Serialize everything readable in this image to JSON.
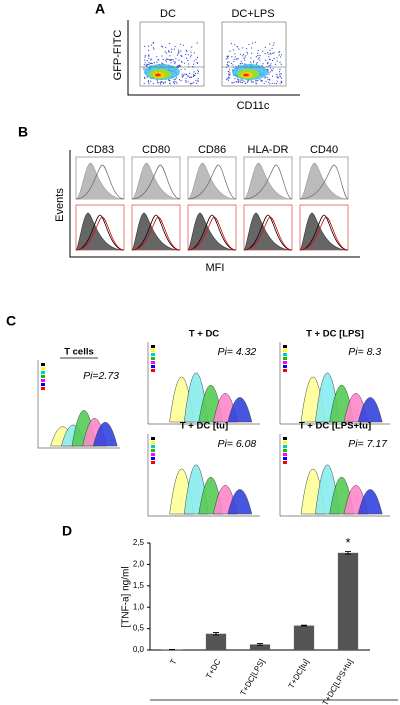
{
  "panel_a": {
    "label": "A",
    "titles": [
      "DC",
      "DC+LPS"
    ],
    "y_label": "GFP-FITC",
    "x_label": "CD11c"
  },
  "panel_b": {
    "label": "B",
    "markers": [
      "CD83",
      "CD80",
      "CD86",
      "HLA-DR",
      "CD40"
    ],
    "y_label": "Events",
    "x_label": "MFI"
  },
  "panel_c": {
    "label": "C",
    "plots": [
      {
        "title": "T cells",
        "pi": "Pi=2.73"
      },
      {
        "title": "T + DC",
        "pi": "Pi= 4.32"
      },
      {
        "title": "T + DC [LPS]",
        "pi": "Pi= 8.3"
      },
      {
        "title": "T + DC [tu]",
        "pi": "Pi= 6.08"
      },
      {
        "title": "T + DC [LPS+tu]",
        "pi": "Pi= 7.17"
      }
    ]
  },
  "panel_d": {
    "label": "D"
  },
  "chart_data": {
    "type": "bar",
    "y_label": "[TNF-a] ng/ml",
    "categories": [
      "T",
      "T+DC",
      "T+DC[LPS]",
      "T+DC[tu]",
      "T+DC[LPS+tu]"
    ],
    "values": [
      0.01,
      0.38,
      0.13,
      0.57,
      2.27
    ],
    "errors": [
      0.005,
      0.03,
      0.02,
      0.01,
      0.03
    ],
    "color": "#555555",
    "ylim": [
      0,
      2.5
    ],
    "yticks": [
      {
        "value": 0,
        "label": "0,0"
      },
      {
        "value": 0.5,
        "label": "0,5"
      },
      {
        "value": 1,
        "label": "1,0"
      },
      {
        "value": 1.5,
        "label": "1,5"
      },
      {
        "value": 2,
        "label": "2,0"
      },
      {
        "value": 2.5,
        "label": "2,5"
      }
    ],
    "annotations": [
      {
        "category": 4,
        "text": "*"
      }
    ]
  }
}
